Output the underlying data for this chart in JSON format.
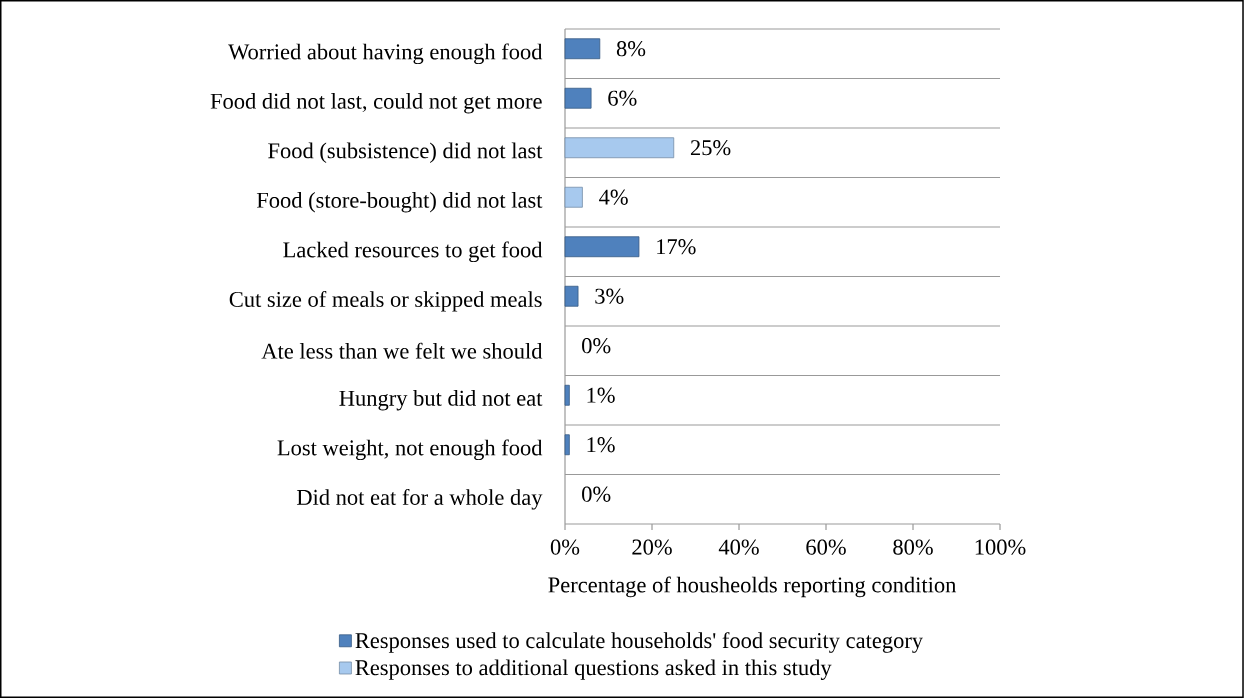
{
  "chart_data": {
    "type": "bar",
    "orientation": "horizontal",
    "xlabel": "Percentage of housheolds reporting condition",
    "categories": [
      "Worried about having enough food",
      "Food did not last, could not get more",
      "Food (subsistence) did not last",
      "Food (store-bought) did not last",
      "Lacked resources to get food",
      "Cut size of meals or skipped meals",
      "Ate less than we felt we should",
      "Hungry but did not eat",
      "Lost weight, not enough food",
      "Did not eat for a whole day"
    ],
    "series": [
      {
        "name": "Responses used to calculate households' food security category",
        "color": "#4f81bd",
        "values": [
          8,
          6,
          null,
          null,
          17,
          3,
          0,
          1,
          1,
          0
        ],
        "value_labels": [
          "8%",
          "6%",
          null,
          null,
          "17%",
          "3%",
          "0%",
          "1%",
          "1%",
          "0%"
        ]
      },
      {
        "name": "Responses to additional questions asked in this study",
        "color": "#a7c9ee",
        "values": [
          null,
          null,
          25,
          4,
          null,
          null,
          null,
          null,
          null,
          null
        ],
        "value_labels": [
          null,
          null,
          "25%",
          "4%",
          null,
          null,
          null,
          null,
          null,
          null
        ]
      }
    ],
    "xlim": [
      0,
      100
    ],
    "xticks": [
      {
        "value": 0,
        "label": "0%"
      },
      {
        "value": 20,
        "label": "20%"
      },
      {
        "value": 40,
        "label": "40%"
      },
      {
        "value": 60,
        "label": "60%"
      },
      {
        "value": 80,
        "label": "80%"
      },
      {
        "value": 100,
        "label": "100%"
      }
    ],
    "grid": "y",
    "legend": "bottom"
  }
}
